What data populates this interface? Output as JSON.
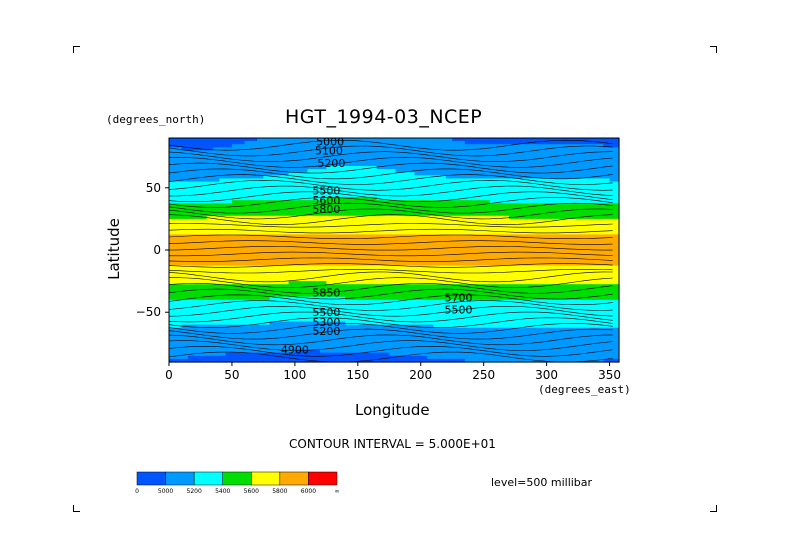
{
  "chart_data": {
    "type": "heatmap",
    "title": "HGT_1994-03_NCEP",
    "xlabel": "Longitude",
    "ylabel": "Latitude",
    "x_units": "(degrees_east)",
    "y_units": "(degrees_north)",
    "xlim": [
      0,
      357.5
    ],
    "ylim": [
      -90,
      90
    ],
    "x_ticks": [
      "0",
      "50",
      "100",
      "150",
      "200",
      "250",
      "300",
      "350"
    ],
    "y_ticks": [
      "50",
      "0",
      "−50"
    ],
    "x_tick_values": [
      0,
      50,
      100,
      150,
      200,
      250,
      300,
      350
    ],
    "y_tick_values": [
      50,
      0,
      -50
    ],
    "annotation": "CONTOUR INTERVAL = 5.000E+01",
    "level": "level=500 millibar",
    "colorbar": {
      "colors": [
        "#0055ff",
        "#0099ff",
        "#00ffff",
        "#00dd00",
        "#ffff00",
        "#ffaa00",
        "#ff0000"
      ],
      "labels": [
        "0",
        "5000",
        "5200",
        "5400",
        "5600",
        "5800",
        "6000",
        "∞"
      ],
      "bounds": [
        0,
        5000,
        5200,
        5400,
        5600,
        5800,
        6000,
        1000000000.0
      ]
    },
    "contour_labels": [
      {
        "text": "5000",
        "lon": 128,
        "lat": 87
      },
      {
        "text": "5100",
        "lon": 127,
        "lat": 80
      },
      {
        "text": "5200",
        "lon": 129,
        "lat": 70
      },
      {
        "text": "5500",
        "lon": 125,
        "lat": 48
      },
      {
        "text": "5600",
        "lon": 125,
        "lat": 40
      },
      {
        "text": "5800",
        "lon": 125,
        "lat": 33
      },
      {
        "text": "5850",
        "lon": 125,
        "lat": -34
      },
      {
        "text": "5700",
        "lon": 230,
        "lat": -38
      },
      {
        "text": "5500",
        "lon": 230,
        "lat": -48
      },
      {
        "text": "5500",
        "lon": 125,
        "lat": -50
      },
      {
        "text": "5300",
        "lon": 125,
        "lat": -58
      },
      {
        "text": "5200",
        "lon": 125,
        "lat": -65
      },
      {
        "text": "4900",
        "lon": 100,
        "lat": -80
      }
    ]
  }
}
